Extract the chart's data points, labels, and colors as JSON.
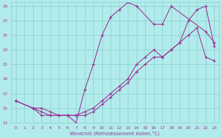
{
  "xlabel": "Windchill (Refroidissement éolien,°C)",
  "ylabel": "",
  "bg_color": "#b2ebeb",
  "grid_color": "#88cccc",
  "line_color": "#993399",
  "marker": "+",
  "xlim": [
    -0.5,
    23.5
  ],
  "ylim": [
    13,
    29.5
  ],
  "xticks": [
    0,
    1,
    2,
    3,
    4,
    5,
    6,
    7,
    8,
    9,
    10,
    11,
    12,
    13,
    14,
    15,
    16,
    17,
    18,
    19,
    20,
    21,
    22,
    23
  ],
  "yticks": [
    13,
    15,
    17,
    19,
    21,
    23,
    25,
    27,
    29
  ],
  "lines": [
    {
      "x": [
        0,
        2,
        3,
        4,
        5,
        6,
        7,
        8,
        9,
        10,
        11,
        12,
        13,
        14,
        16,
        17,
        18,
        22,
        23
      ],
      "y": [
        16,
        15,
        14,
        14,
        14,
        14,
        13,
        17.5,
        21,
        25,
        27.5,
        28.5,
        29.5,
        29,
        26.5,
        26.5,
        29,
        25.5,
        24
      ]
    },
    {
      "x": [
        0,
        2,
        3,
        4,
        5,
        6,
        7,
        8,
        9,
        10,
        11,
        12,
        13,
        14,
        15,
        16,
        17,
        18,
        19,
        20,
        21,
        22,
        23
      ],
      "y": [
        16,
        15,
        15,
        14.5,
        14,
        14,
        14,
        14.5,
        15,
        16,
        17,
        18,
        19,
        21,
        22,
        23,
        22,
        23,
        24,
        27,
        28.5,
        29,
        23.5
      ]
    },
    {
      "x": [
        0,
        2,
        3,
        4,
        5,
        6,
        7,
        8,
        9,
        10,
        11,
        12,
        13,
        14,
        15,
        16,
        17,
        18,
        19,
        20,
        21,
        22,
        23
      ],
      "y": [
        16,
        15,
        14.5,
        14,
        14,
        14,
        14,
        14,
        14.5,
        15.5,
        16.5,
        17.5,
        18.5,
        20,
        21,
        22,
        22,
        23,
        24,
        25,
        26,
        22,
        21.5
      ]
    }
  ]
}
